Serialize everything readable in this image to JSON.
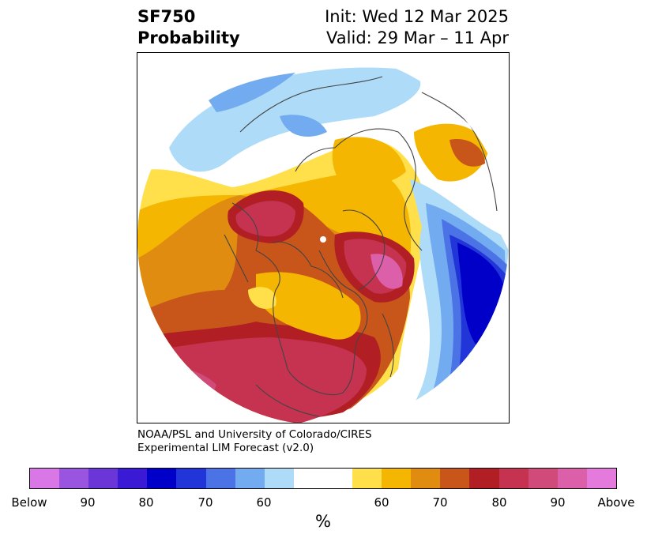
{
  "title": {
    "left_line1": "SF750",
    "left_line2": "Probability",
    "right_line1": "Init: Wed 12 Mar 2025",
    "right_line2": "Valid: 29 Mar – 11 Apr"
  },
  "credit": {
    "line1": "NOAA/PSL and University of Colorado/CIRES",
    "line2": "Experimental LIM Forecast (v2.0)"
  },
  "colorbar": {
    "colors": [
      "#d977e6",
      "#9a55e0",
      "#6a36d8",
      "#3a1ad4",
      "#0000c8",
      "#2235d8",
      "#4b73e6",
      "#72abef",
      "#aedcf8",
      "#ffffff",
      "#ffffff",
      "#ffe04a",
      "#f4b600",
      "#e08c10",
      "#c8561a",
      "#b11f24",
      "#c53350",
      "#d04a7a",
      "#dc5faa",
      "#e47adc"
    ],
    "tick_labels": [
      "Below",
      "90",
      "80",
      "70",
      "60",
      "60",
      "70",
      "80",
      "90",
      "Above"
    ],
    "unit": "%"
  },
  "map": {
    "projection": "north-polar-stereographic",
    "legend_meaning": "probability of below / above normal"
  }
}
